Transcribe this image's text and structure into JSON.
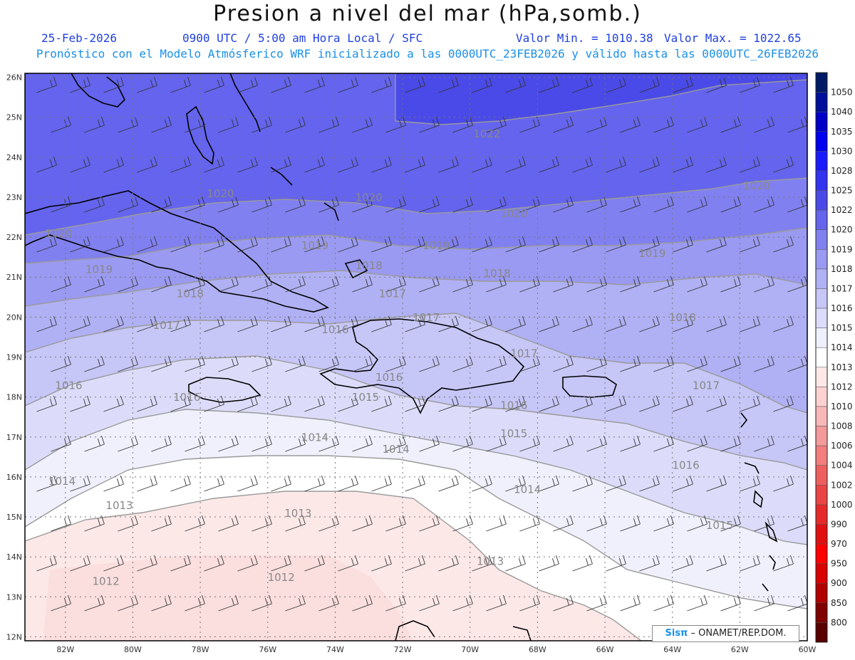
{
  "header": {
    "title": "Presion a nivel del mar (hPa,somb.)",
    "date": "25-Feb-2026",
    "time": "0900 UTC / 5:00 am Hora Local / SFC",
    "min": "Valor Min. = 1010.38",
    "max": "Valor Max. = 1022.65",
    "info": "Pronóstico con el Modelo Atmósferico WRF inicializado a las 0000UTC_23FEB2026 y válido hasta las  0000UTC_26FEB2026"
  },
  "map": {
    "lat_labels": [
      "26N",
      "25N",
      "24N",
      "23N",
      "22N",
      "21N",
      "20N",
      "19N",
      "18N",
      "17N",
      "16N",
      "15N",
      "14N",
      "13N",
      "12N"
    ],
    "lon_labels": [
      "82W",
      "80W",
      "78W",
      "76W",
      "74W",
      "72W",
      "70W",
      "68W",
      "66W",
      "64W",
      "62W",
      "60W"
    ],
    "isobar_labels": [
      {
        "text": "1022",
        "lon": -69.5,
        "lat": 24.5
      },
      {
        "text": "1020",
        "lon": -77.4,
        "lat": 23.0
      },
      {
        "text": "1020",
        "lon": -73.0,
        "lat": 22.9
      },
      {
        "text": "1020",
        "lon": -68.7,
        "lat": 22.5
      },
      {
        "text": "1020",
        "lon": -61.5,
        "lat": 23.2
      },
      {
        "text": "1020",
        "lon": -82.2,
        "lat": 22.0
      },
      {
        "text": "1019",
        "lon": -81.0,
        "lat": 21.1
      },
      {
        "text": "1019",
        "lon": -74.6,
        "lat": 21.7
      },
      {
        "text": "1019",
        "lon": -71.0,
        "lat": 21.7
      },
      {
        "text": "1019",
        "lon": -64.6,
        "lat": 21.5
      },
      {
        "text": "1018",
        "lon": -78.3,
        "lat": 20.5
      },
      {
        "text": "1018",
        "lon": -73.0,
        "lat": 21.2
      },
      {
        "text": "1018",
        "lon": -69.2,
        "lat": 21.0
      },
      {
        "text": "1018",
        "lon": -63.7,
        "lat": 19.9
      },
      {
        "text": "1017",
        "lon": -79.0,
        "lat": 19.7
      },
      {
        "text": "1017",
        "lon": -72.3,
        "lat": 20.5
      },
      {
        "text": "1017",
        "lon": -71.3,
        "lat": 19.9
      },
      {
        "text": "1017",
        "lon": -68.4,
        "lat": 19.0
      },
      {
        "text": "1017",
        "lon": -63.0,
        "lat": 18.2
      },
      {
        "text": "1016",
        "lon": -81.9,
        "lat": 18.2
      },
      {
        "text": "1016",
        "lon": -74.0,
        "lat": 19.6
      },
      {
        "text": "1016",
        "lon": -78.4,
        "lat": 17.9
      },
      {
        "text": "1016",
        "lon": -72.4,
        "lat": 18.4
      },
      {
        "text": "1016",
        "lon": -68.7,
        "lat": 17.7
      },
      {
        "text": "1016",
        "lon": -63.6,
        "lat": 16.2
      },
      {
        "text": "1015",
        "lon": -73.1,
        "lat": 17.9
      },
      {
        "text": "1015",
        "lon": -68.7,
        "lat": 17.0
      },
      {
        "text": "1015",
        "lon": -62.6,
        "lat": 14.7
      },
      {
        "text": "1014",
        "lon": -74.6,
        "lat": 16.9
      },
      {
        "text": "1014",
        "lon": -72.2,
        "lat": 16.6
      },
      {
        "text": "1014",
        "lon": -82.1,
        "lat": 15.8
      },
      {
        "text": "1014",
        "lon": -68.3,
        "lat": 15.6
      },
      {
        "text": "1013",
        "lon": -80.4,
        "lat": 15.2
      },
      {
        "text": "1013",
        "lon": -75.1,
        "lat": 15.0
      },
      {
        "text": "1013",
        "lon": -69.4,
        "lat": 13.8
      },
      {
        "text": "1012",
        "lon": -80.8,
        "lat": 13.3
      },
      {
        "text": "1012",
        "lon": -75.6,
        "lat": 13.4
      }
    ]
  },
  "colorbar": {
    "levels": [
      {
        "label": "1050",
        "color": "#001a66"
      },
      {
        "label": "1040",
        "color": "#00109a"
      },
      {
        "label": "1035",
        "color": "#0000c8"
      },
      {
        "label": "1030",
        "color": "#0000f0"
      },
      {
        "label": "1028",
        "color": "#1a1aff"
      },
      {
        "label": "1025",
        "color": "#3333f2"
      },
      {
        "label": "1022",
        "color": "#4a4ae8"
      },
      {
        "label": "1020",
        "color": "#6464ee"
      },
      {
        "label": "1019",
        "color": "#8080f0"
      },
      {
        "label": "1018",
        "color": "#9a9af2"
      },
      {
        "label": "1017",
        "color": "#b0b0f4"
      },
      {
        "label": "1016",
        "color": "#c6c6f7"
      },
      {
        "label": "1015",
        "color": "#dcdcfa"
      },
      {
        "label": "1014",
        "color": "#f0f0fd"
      },
      {
        "label": "1013",
        "color": "#ffffff"
      },
      {
        "label": "1012",
        "color": "#fde8e8"
      },
      {
        "label": "1010",
        "color": "#fbd2d2"
      },
      {
        "label": "1008",
        "color": "#f8b8b8"
      },
      {
        "label": "1006",
        "color": "#f59a9a"
      },
      {
        "label": "1004",
        "color": "#f27e7e"
      },
      {
        "label": "1002",
        "color": "#ee6060"
      },
      {
        "label": "1000",
        "color": "#ea4444"
      },
      {
        "label": "990",
        "color": "#e62a2a"
      },
      {
        "label": "970",
        "color": "#e01010"
      },
      {
        "label": "950",
        "color": "#ff0000"
      },
      {
        "label": "900",
        "color": "#d80000"
      },
      {
        "label": "850",
        "color": "#b00000"
      },
      {
        "label": "800",
        "color": "#800000"
      },
      {
        "label": "",
        "color": "#5a0000"
      }
    ]
  },
  "credit": {
    "brand": "Sisπ",
    "org": " – ONAMET/REP.DOM."
  }
}
